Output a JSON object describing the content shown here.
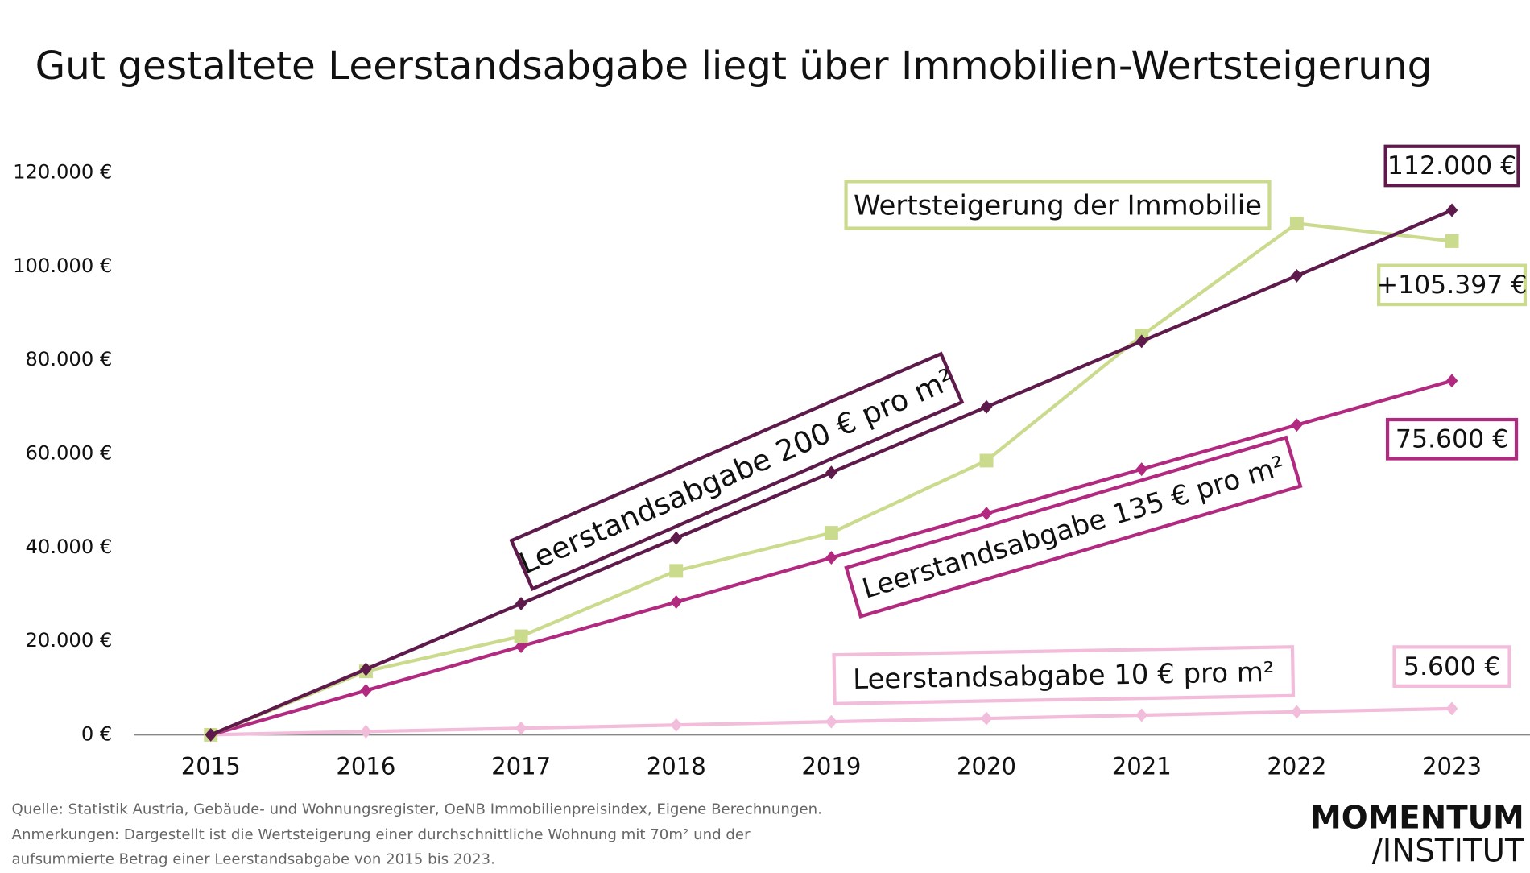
{
  "chart_data": {
    "type": "line",
    "title": "Gut gestaltete Leerstandsabgabe liegt über Immobilien-Wertsteigerung",
    "categories": [
      "2015",
      "2016",
      "2017",
      "2018",
      "2019",
      "2020",
      "2021",
      "2022",
      "2023"
    ],
    "ylim": [
      0,
      120000
    ],
    "yticks": [
      {
        "value": 0,
        "label": "0 €"
      },
      {
        "value": 20000,
        "label": "20.000 €"
      },
      {
        "value": 40000,
        "label": "40.000 €"
      },
      {
        "value": 60000,
        "label": "60.000 €"
      },
      {
        "value": 80000,
        "label": "80.000 €"
      },
      {
        "value": 100000,
        "label": "100.000 €"
      },
      {
        "value": 120000,
        "label": "120.000 €"
      }
    ],
    "series": [
      {
        "name": "Leerstandsabgabe 10 € pro m²",
        "color": "#f2bcdb",
        "marker": "diamond",
        "values": [
          0,
          700,
          1400,
          2100,
          2800,
          3500,
          4200,
          4900,
          5600
        ],
        "value_labels": [
          null,
          null,
          null,
          null,
          null,
          null,
          null,
          null,
          "5.600 €"
        ]
      },
      {
        "name": "Leerstandsabgabe 135 € pro m²",
        "color": "#b12a80",
        "marker": "diamond",
        "values": [
          0,
          9450,
          18900,
          28350,
          37800,
          47250,
          56700,
          66150,
          75600
        ],
        "value_labels": [
          null,
          null,
          null,
          null,
          null,
          null,
          null,
          null,
          "75.600 €"
        ]
      },
      {
        "name": "Wertsteigerung der Immobilie",
        "color": "#cbdb8e",
        "marker": "square",
        "values": [
          0,
          13540,
          21040,
          35000,
          43125,
          58540,
          85210,
          109170,
          105397
        ],
        "value_labels": [
          null,
          null,
          null,
          null,
          null,
          null,
          null,
          null,
          "+105.397 €"
        ]
      },
      {
        "name": "Leerstandsabgabe 200 € pro m²",
        "color": "#5e1a4a",
        "marker": "diamond",
        "values": [
          0,
          14000,
          28000,
          42000,
          56000,
          70000,
          84000,
          98000,
          112000
        ],
        "value_labels": [
          null,
          null,
          null,
          null,
          null,
          null,
          null,
          null,
          "112.000 €"
        ]
      }
    ],
    "source": "Quelle: Statistik Austria, Gebäude- und Wohnungsregister, OeNB Immobilienpreisindex, Eigene Berechnungen.",
    "notes": [
      "Anmerkungen: Dargestellt ist die Wertsteigerung einer durchschnittliche Wohnung mit 70m² und der",
      "aufsummierte Betrag einer Leerstandsabgabe von 2015 bis 2023."
    ],
    "logo": [
      "MOMENTUM",
      "/INSTITUT"
    ]
  }
}
